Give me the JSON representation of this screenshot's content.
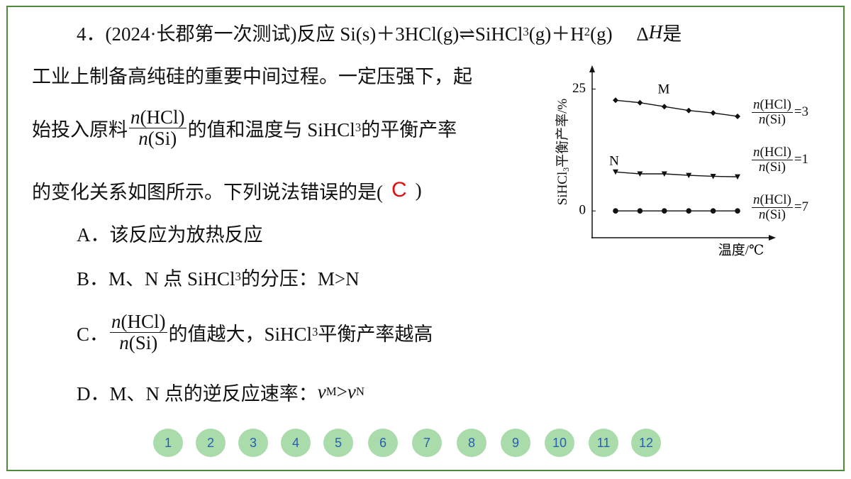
{
  "question": {
    "lines": [
      [
        "4．(2024·长郡第一次测试)反应 Si(s)＋3HCl(g)⇌SiHCl",
        {
          "sub": "3"
        },
        "(g)＋H",
        {
          "sub": "2"
        },
        "(g)　 Δ",
        {
          "i": "H"
        },
        " 是"
      ],
      [
        "工业上制备高纯硅的重要中间过程。一定压强下，起"
      ],
      [
        "始投入原料",
        {
          "frac": {
            "num": [
              {
                "i": "n"
              },
              "(HCl)"
            ],
            "den": [
              {
                "i": "n"
              },
              "(Si)"
            ]
          }
        },
        "的值和温度与 SiHCl",
        {
          "sub": "3"
        },
        " 的平衡产率"
      ],
      [
        "的变化关系如图所示。下列说法错误的是(",
        {
          "answer": "C"
        },
        ")"
      ]
    ],
    "options": [
      [
        "A．该反应为放热反应"
      ],
      [
        "B．M、N 点 SiHCl",
        {
          "sub": "3"
        },
        " 的分压：M>N"
      ],
      [
        "C．",
        {
          "frac": {
            "num": [
              {
                "i": "n"
              },
              "(HCl)"
            ],
            "den": [
              {
                "i": "n"
              },
              "(Si)"
            ]
          }
        },
        "的值越大，SiHCl",
        {
          "sub": "3"
        },
        " 平衡产率越高"
      ],
      [
        "D．M、N 点的逆反应速率：",
        {
          "i": "v"
        },
        {
          "sub": "M"
        },
        ">",
        {
          "i": "v"
        },
        {
          "sub": "N"
        }
      ]
    ]
  },
  "chart": {
    "type": "line",
    "ylabel": [
      "SiHCl",
      {
        "sub": "3"
      },
      "平衡产率/%"
    ],
    "xlabel": "温度/℃",
    "legend_label": {
      "frac": {
        "num": [
          {
            "i": "n"
          },
          "(HCl)"
        ],
        "den": [
          {
            "i": "n"
          },
          "(Si)"
        ]
      }
    },
    "categories": [
      null,
      null,
      null,
      null,
      null,
      null
    ],
    "ylim": [
      -5.5,
      29
    ],
    "yticks": [
      0,
      25
    ],
    "series": [
      {
        "name": "=3",
        "marker": "diamond",
        "point_label": "M",
        "values": [
          22.7,
          22.2,
          21.4,
          20.6,
          20.1,
          19.4
        ]
      },
      {
        "name": "=1",
        "marker": "triangle-down",
        "point_label": "N",
        "values": [
          8.0,
          7.6,
          7.6,
          7.3,
          7.1,
          7.0
        ]
      },
      {
        "name": "=7",
        "marker": "circle",
        "values": [
          0,
          0,
          0,
          0,
          0,
          0
        ]
      }
    ]
  },
  "nav": [
    "1",
    "2",
    "3",
    "4",
    "5",
    "6",
    "7",
    "8",
    "9",
    "10",
    "11",
    "12"
  ]
}
